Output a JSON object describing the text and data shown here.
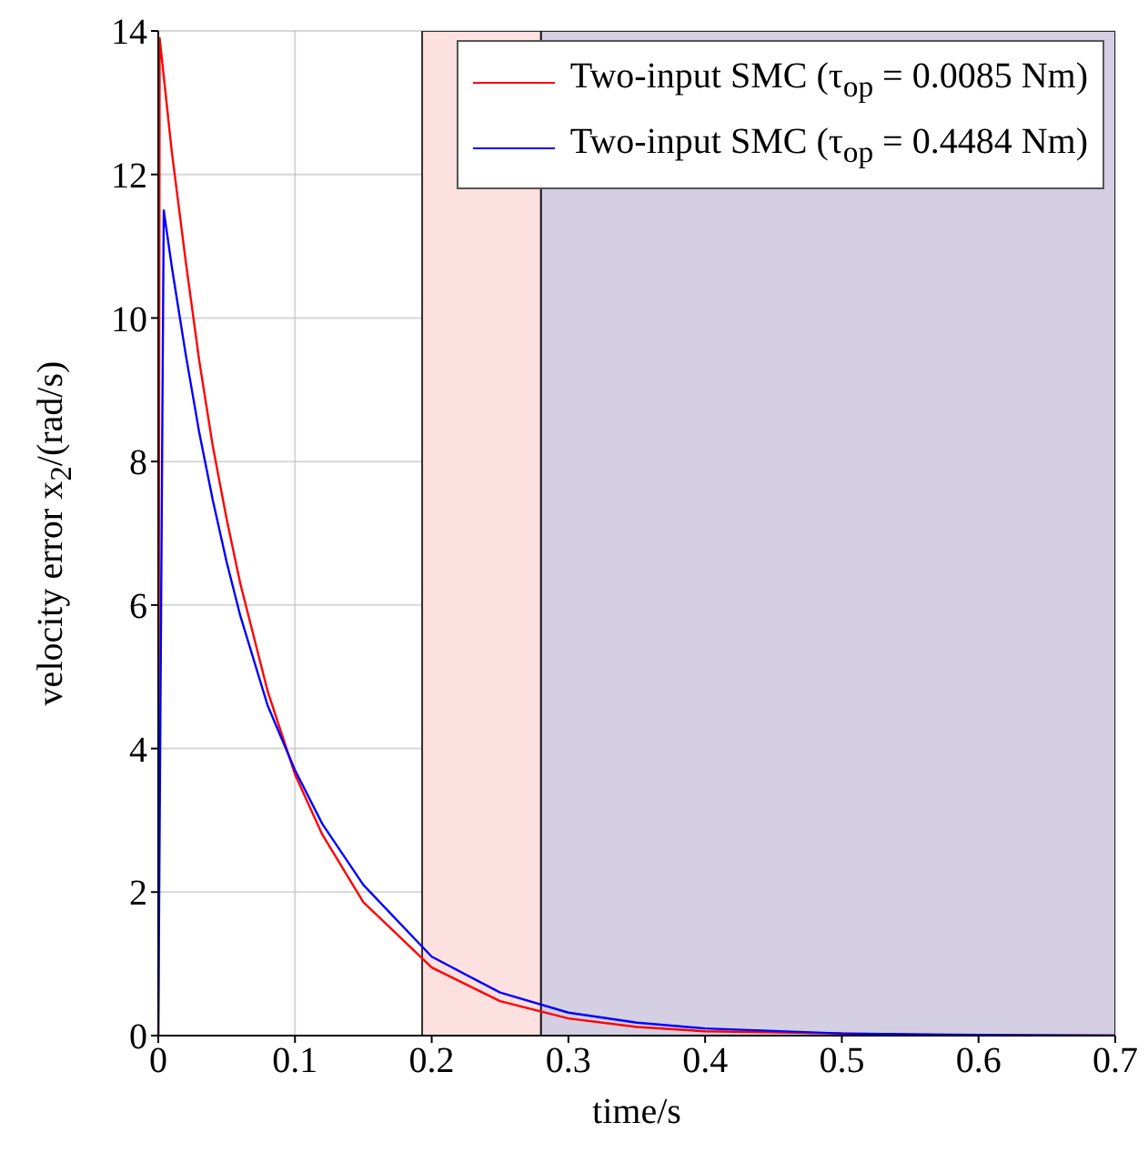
{
  "chart_data": {
    "type": "line",
    "xlabel": "time/s",
    "ylabel": "velocity error x$_{2}$/(rad/s)",
    "xlim": [
      0,
      0.7
    ],
    "xticks": [
      0,
      0.1,
      0.2,
      0.3,
      0.4,
      0.5,
      0.6,
      0.7
    ],
    "ylim": [
      0,
      14
    ],
    "yticks": [
      0,
      2,
      4,
      6,
      8,
      10,
      12,
      14
    ],
    "grid": true,
    "legend": "top right",
    "marker": "none",
    "line_style": "solid",
    "bands": [
      {
        "axis": "x",
        "from": 0.193,
        "to": 0.28,
        "color": "#fde0e0"
      },
      {
        "axis": "x",
        "from": 0.28,
        "to": 0.7,
        "color": "#d4cfe3"
      }
    ],
    "series": [
      {
        "name": "Two-input SMC (τ$_{op}$ = 0.0085 Nm)",
        "color": "#ff0000",
        "x": [
          0,
          0.001,
          0.01,
          0.02,
          0.03,
          0.04,
          0.05,
          0.06,
          0.08,
          0.1,
          0.12,
          0.15,
          0.2,
          0.25,
          0.3,
          0.35,
          0.4,
          0.6,
          0.7
        ],
        "values": [
          0,
          13.9,
          12.3,
          10.8,
          9.4,
          8.2,
          7.2,
          6.3,
          4.8,
          3.64,
          2.8,
          1.86,
          0.95,
          0.48,
          0.24,
          0.12,
          0.06,
          0,
          0
        ]
      },
      {
        "name": "Two-input SMC (τ$_{op}$ = 0.4484 Nm)",
        "color": "#0000ff",
        "x": [
          0,
          0.004,
          0.01,
          0.02,
          0.03,
          0.04,
          0.05,
          0.06,
          0.08,
          0.1,
          0.12,
          0.15,
          0.2,
          0.25,
          0.3,
          0.35,
          0.4,
          0.5,
          0.6,
          0.7
        ],
        "values": [
          0,
          11.5,
          10.7,
          9.5,
          8.4,
          7.45,
          6.6,
          5.85,
          4.6,
          3.7,
          2.95,
          2.1,
          1.1,
          0.6,
          0.32,
          0.18,
          0.1,
          0.03,
          0.01,
          0
        ]
      }
    ]
  }
}
